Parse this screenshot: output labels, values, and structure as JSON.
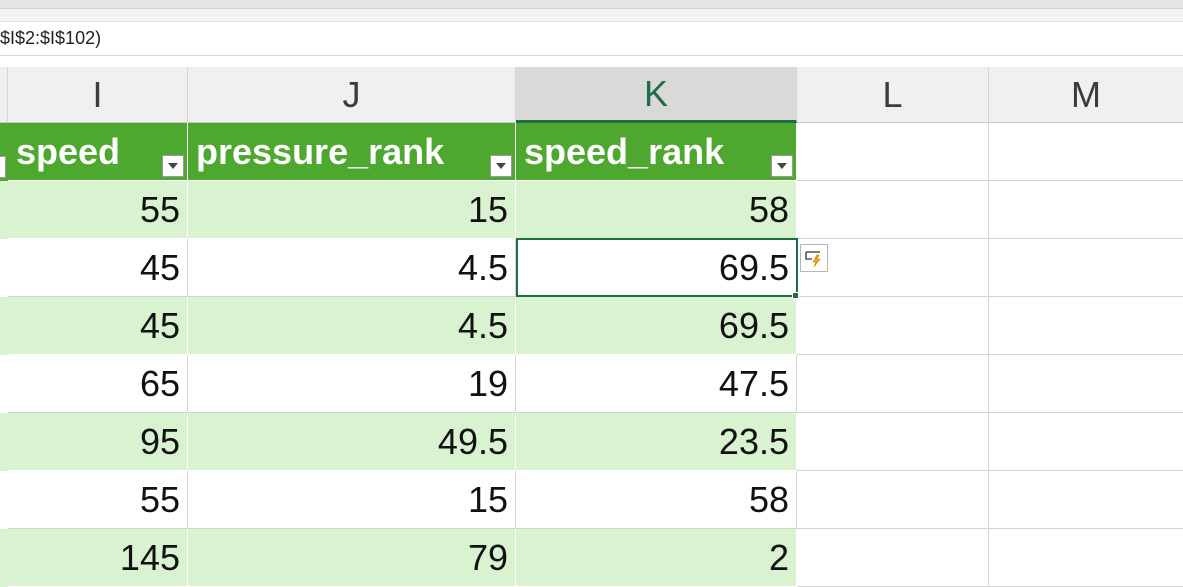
{
  "formula_bar": {
    "text": "$I$2:$I$102)"
  },
  "columns": [
    {
      "letter": "I",
      "active": false
    },
    {
      "letter": "J",
      "active": false
    },
    {
      "letter": "K",
      "active": true
    },
    {
      "letter": "L",
      "active": false
    },
    {
      "letter": "M",
      "active": false
    }
  ],
  "table": {
    "headers": [
      "speed",
      "pressure_rank",
      "speed_rank"
    ],
    "rows": [
      [
        "55",
        "15",
        "58"
      ],
      [
        "45",
        "4.5",
        "69.5"
      ],
      [
        "45",
        "4.5",
        "69.5"
      ],
      [
        "65",
        "19",
        "47.5"
      ],
      [
        "95",
        "49.5",
        "23.5"
      ],
      [
        "55",
        "15",
        "58"
      ],
      [
        "145",
        "79",
        "2"
      ]
    ]
  },
  "selected_cell": {
    "column": "K",
    "value": "69.5"
  },
  "icons": {
    "filter": "chevron-down-icon",
    "quick_analysis": "quick-analysis-icon"
  },
  "colors": {
    "table_header": "#4ea72e",
    "band": "#d9f2d0",
    "accent": "#1f6e43"
  }
}
